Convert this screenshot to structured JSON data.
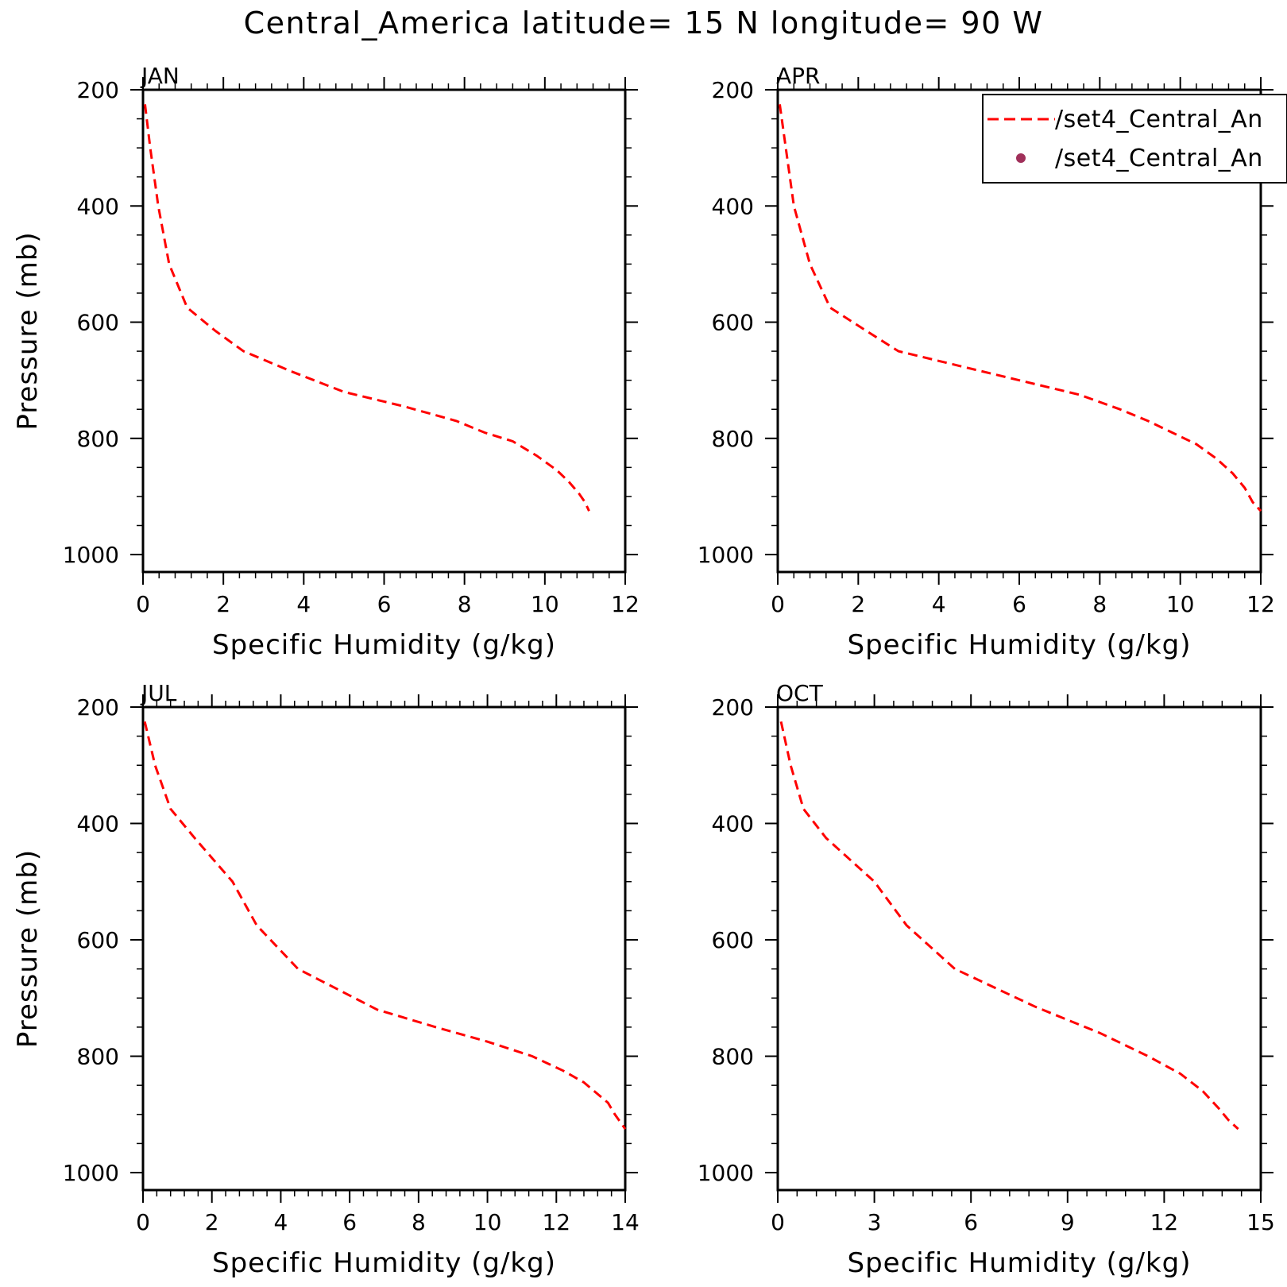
{
  "title": "Central_America  latitude= 15 N longitude= 90 W",
  "legend": {
    "entries": [
      {
        "label": "/set4_Central_An",
        "style": "dashed-line",
        "color": "#ff0000"
      },
      {
        "label": "/set4_Central_An",
        "style": "dot",
        "color": "#a0305a"
      }
    ]
  },
  "chart_data": [
    {
      "type": "line",
      "panel": "JAN",
      "xlabel": "Specific Humidity (g/kg)",
      "ylabel": "Pressure (mb)",
      "xlim": [
        0,
        12
      ],
      "ylim": [
        1030,
        200
      ],
      "x_ticks": [
        "0",
        "2",
        "4",
        "6",
        "8",
        "10",
        "12"
      ],
      "y_ticks": [
        "200",
        "400",
        "600",
        "800",
        "1000"
      ],
      "series": [
        {
          "color": "#ff0000",
          "style": "dashed",
          "x": [
            0.05,
            0.18,
            0.38,
            0.65,
            1.1,
            1.8,
            2.5,
            3.7,
            5.0,
            6.5,
            7.8,
            8.5,
            9.2,
            9.8,
            10.3,
            10.6,
            10.85,
            11.0,
            11.1
          ],
          "y": [
            225,
            300,
            400,
            500,
            575,
            615,
            650,
            685,
            720,
            745,
            770,
            790,
            805,
            830,
            855,
            875,
            895,
            910,
            925
          ]
        }
      ]
    },
    {
      "type": "line",
      "panel": "APR",
      "xlabel": "Specific Humidity (g/kg)",
      "ylabel": "",
      "xlim": [
        0,
        12
      ],
      "ylim": [
        1030,
        200
      ],
      "x_ticks": [
        "0",
        "2",
        "4",
        "6",
        "8",
        "10",
        "12"
      ],
      "y_ticks": [
        "200",
        "400",
        "600",
        "800",
        "1000"
      ],
      "series": [
        {
          "color": "#ff0000",
          "style": "dashed",
          "x": [
            0.05,
            0.2,
            0.4,
            0.8,
            1.3,
            2.2,
            3.0,
            4.5,
            6.0,
            7.5,
            8.5,
            9.2,
            9.8,
            10.4,
            10.9,
            11.3,
            11.6,
            11.8,
            12.0
          ],
          "y": [
            225,
            300,
            400,
            500,
            575,
            615,
            650,
            675,
            700,
            725,
            750,
            770,
            790,
            810,
            835,
            860,
            885,
            910,
            925
          ]
        }
      ]
    },
    {
      "type": "line",
      "panel": "JUL",
      "xlabel": "Specific Humidity (g/kg)",
      "ylabel": "Pressure (mb)",
      "xlim": [
        0,
        14
      ],
      "ylim": [
        1030,
        200
      ],
      "x_ticks": [
        "0",
        "2",
        "4",
        "6",
        "8",
        "10",
        "12",
        "14"
      ],
      "y_ticks": [
        "200",
        "400",
        "600",
        "800",
        "1000"
      ],
      "series": [
        {
          "color": "#ff0000",
          "style": "dashed",
          "x": [
            0.05,
            0.35,
            0.8,
            1.5,
            2.6,
            3.3,
            4.5,
            6.8,
            8.5,
            10.0,
            11.3,
            12.2,
            12.8,
            13.2,
            13.5,
            13.7,
            14.0
          ],
          "y": [
            225,
            300,
            375,
            425,
            500,
            575,
            650,
            720,
            750,
            775,
            800,
            825,
            845,
            865,
            880,
            900,
            925
          ]
        }
      ]
    },
    {
      "type": "line",
      "panel": "OCT",
      "xlabel": "Specific Humidity (g/kg)",
      "ylabel": "",
      "xlim": [
        0,
        15
      ],
      "ylim": [
        1030,
        200
      ],
      "x_ticks": [
        "0",
        "3",
        "6",
        "9",
        "12",
        "15"
      ],
      "y_ticks": [
        "200",
        "400",
        "600",
        "800",
        "1000"
      ],
      "series": [
        {
          "color": "#ff0000",
          "style": "dashed",
          "x": [
            0.1,
            0.4,
            0.8,
            1.5,
            3.0,
            4.0,
            5.5,
            8.0,
            10.0,
            11.5,
            12.5,
            13.2,
            13.7,
            14.0,
            14.3
          ],
          "y": [
            225,
            300,
            375,
            425,
            500,
            575,
            650,
            715,
            760,
            800,
            830,
            860,
            890,
            910,
            925
          ]
        }
      ]
    }
  ]
}
